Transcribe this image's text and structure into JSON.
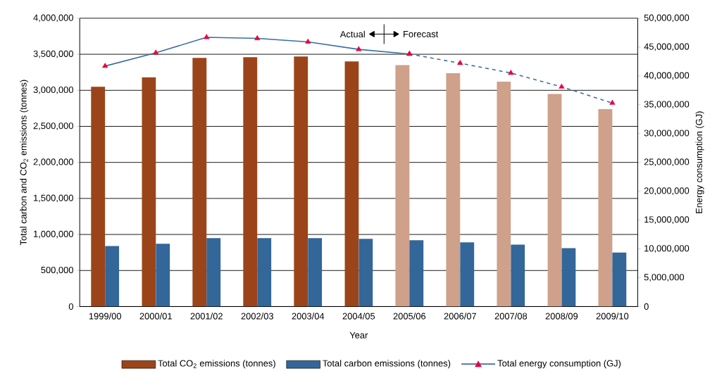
{
  "chart_data": {
    "type": "bar",
    "xlabel": "Year",
    "ylabel": "Total carbon and CO$_{2}$ emissions (tonnes)",
    "y2label": "Energy consumption (GJ)",
    "categories": [
      "1999/00",
      "2000/01",
      "2001/02",
      "2002/03",
      "2003/04",
      "2004/05",
      "2005/06",
      "2006/07",
      "2007/08",
      "2008/09",
      "2009/10"
    ],
    "series": [
      {
        "name": "Total CO$_{2}$ emissions (tonnes)",
        "color": "#9c4419",
        "colors": [
          "#9c4419",
          "#9c4419",
          "#9c4419",
          "#9c4419",
          "#9c4419",
          "#9c4419",
          "#cfa08a",
          "#cfa08a",
          "#cfa08a",
          "#cfa08a",
          "#cfa08a"
        ],
        "values": [
          3050000,
          3180000,
          3450000,
          3460000,
          3470000,
          3400000,
          3350000,
          3240000,
          3120000,
          2950000,
          2740000
        ]
      },
      {
        "name": "Total carbon emissions (tonnes)",
        "color": "#336699",
        "values": [
          840000,
          870000,
          950000,
          950000,
          950000,
          940000,
          920000,
          890000,
          860000,
          810000,
          750000
        ]
      },
      {
        "name": "Total energy consumption (GJ)",
        "type": "line",
        "axis": "y2",
        "color": "#3a6ea5",
        "colors": [
          "#e8003d",
          "#e8003d",
          "#e8003d",
          "#e8003d",
          "#e8003d",
          "#e8003d",
          "#e8003d",
          null,
          null,
          null,
          null
        ],
        "line_style": "solid",
        "marker": "triangle",
        "values": [
          41700000,
          44000000,
          46700000,
          46500000,
          45900000,
          44600000,
          43800000,
          null,
          null,
          null,
          null
        ]
      },
      {
        "type": "line",
        "axis": "y2",
        "color": "#3a6ea5",
        "colors": [
          null,
          null,
          null,
          null,
          null,
          null,
          "#e8003d",
          "#e8003d",
          "#e8003d",
          "#e8003d",
          "#e8003d"
        ],
        "line_style": "dashed",
        "marker": "triangle",
        "values": [
          null,
          null,
          null,
          null,
          null,
          null,
          43800000,
          42200000,
          40500000,
          38100000,
          35300000
        ]
      }
    ],
    "ylim": [
      0,
      4000000
    ],
    "yticks": [
      0,
      {
        "value": 500000,
        "label": "500,000"
      },
      {
        "value": 1000000,
        "label": "1,000,000"
      },
      {
        "value": 1500000,
        "label": "1,500,000"
      },
      {
        "value": 2000000,
        "label": "2,000,000"
      },
      {
        "value": 2500000,
        "label": "2,500,000"
      },
      {
        "value": 3000000,
        "label": "3,000,000"
      },
      {
        "value": 3500000,
        "label": "3,500,000"
      },
      {
        "value": 4000000,
        "label": "4,000,000"
      }
    ],
    "y2lim": [
      0,
      50000000
    ],
    "y2ticks": [
      0,
      {
        "value": 5000000,
        "label": "5,000,000"
      },
      {
        "value": 10000000,
        "label": "10,000,000"
      },
      {
        "value": 15000000,
        "label": "15,000,000"
      },
      {
        "value": 20000000,
        "label": "20,000,000"
      },
      {
        "value": 25000000,
        "label": "25,000,000"
      },
      {
        "value": 30000000,
        "label": "30,000,000"
      },
      {
        "value": 35000000,
        "label": "35,000,000"
      },
      {
        "value": 40000000,
        "label": "40,000,000"
      },
      {
        "value": 45000000,
        "label": "45,000,000"
      },
      {
        "value": 50000000,
        "label": "50,000,000"
      }
    ],
    "annotations": [
      "Actual",
      "Forecast"
    ],
    "grid": "y",
    "legend": "bottom"
  }
}
